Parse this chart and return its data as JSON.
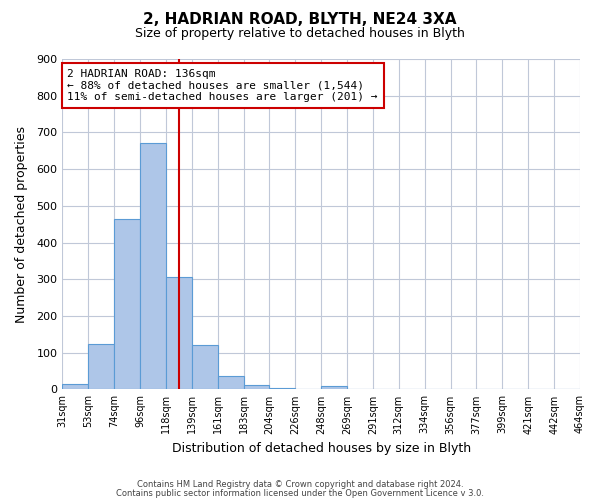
{
  "title_line1": "2, HADRIAN ROAD, BLYTH, NE24 3XA",
  "title_line2": "Size of property relative to detached houses in Blyth",
  "xlabel": "Distribution of detached houses by size in Blyth",
  "ylabel": "Number of detached properties",
  "bin_labels": [
    "31sqm",
    "53sqm",
    "74sqm",
    "96sqm",
    "118sqm",
    "139sqm",
    "161sqm",
    "183sqm",
    "204sqm",
    "226sqm",
    "248sqm",
    "269sqm",
    "291sqm",
    "312sqm",
    "334sqm",
    "356sqm",
    "377sqm",
    "399sqm",
    "421sqm",
    "442sqm",
    "464sqm"
  ],
  "bar_heights": [
    15,
    125,
    465,
    670,
    305,
    120,
    37,
    12,
    5,
    0,
    8,
    0,
    0,
    0,
    0,
    0,
    0,
    0,
    0,
    0
  ],
  "bar_color": "#aec6e8",
  "bar_edge_color": "#5b9bd5",
  "vline_color": "#cc0000",
  "vline_position": 4.5,
  "ylim": [
    0,
    900
  ],
  "yticks": [
    0,
    100,
    200,
    300,
    400,
    500,
    600,
    700,
    800,
    900
  ],
  "annotation_title": "2 HADRIAN ROAD: 136sqm",
  "annotation_line1": "← 88% of detached houses are smaller (1,544)",
  "annotation_line2": "11% of semi-detached houses are larger (201) →",
  "annotation_box_color": "#ffffff",
  "annotation_box_edge_color": "#cc0000",
  "footer_line1": "Contains HM Land Registry data © Crown copyright and database right 2024.",
  "footer_line2": "Contains public sector information licensed under the Open Government Licence v 3.0.",
  "background_color": "#ffffff",
  "grid_color": "#c0c8d8"
}
